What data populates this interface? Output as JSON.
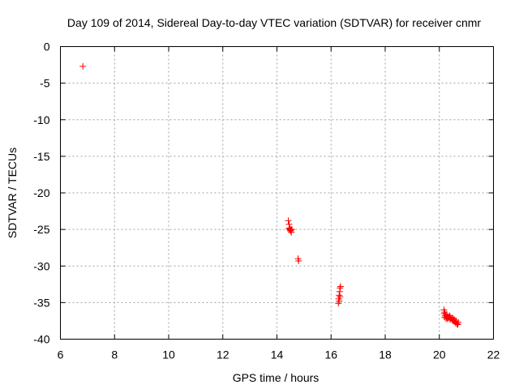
{
  "chart_data": {
    "type": "scatter",
    "title": "Day 109 of 2014, Sidereal Day-to-day VTEC variation (SDTVAR) for receiver cnmr",
    "xlabel": "GPS time / hours",
    "ylabel": "SDTVAR / TECUs",
    "xlim": [
      6,
      22
    ],
    "ylim": [
      -40,
      0
    ],
    "xticks": [
      6,
      8,
      10,
      12,
      14,
      16,
      18,
      20,
      22
    ],
    "yticks": [
      0,
      -5,
      -10,
      -15,
      -20,
      -25,
      -30,
      -35,
      -40
    ],
    "grid": true,
    "marker": "+",
    "color": "#ff0000",
    "series": [
      {
        "x": [
          6.83,
          14.42,
          14.45,
          14.47,
          14.48,
          14.5,
          14.52,
          14.53,
          14.55,
          14.45,
          14.5,
          14.78,
          14.8,
          16.27,
          16.28,
          16.3,
          16.32,
          16.33,
          16.35,
          16.3,
          16.33,
          20.17,
          20.18,
          20.2,
          20.22,
          20.25,
          20.28,
          20.3,
          20.33,
          20.35,
          20.38,
          20.4,
          20.42,
          20.45,
          20.48,
          20.5,
          20.52,
          20.55,
          20.57,
          20.6,
          20.62,
          20.65,
          20.68,
          20.7,
          20.2,
          20.25,
          20.3
        ],
        "y": [
          -2.7,
          -23.8,
          -24.3,
          -24.8,
          -25.0,
          -25.2,
          -25.0,
          -25.4,
          -25.0,
          -24.9,
          -25.1,
          -29.0,
          -29.3,
          -35.1,
          -34.5,
          -34.0,
          -33.5,
          -33.0,
          -32.8,
          -34.8,
          -34.2,
          -36.0,
          -36.5,
          -37.0,
          -36.8,
          -37.2,
          -37.0,
          -36.9,
          -37.1,
          -37.0,
          -36.8,
          -37.3,
          -37.0,
          -37.2,
          -37.4,
          -37.1,
          -37.5,
          -37.3,
          -37.6,
          -37.8,
          -37.5,
          -37.9,
          -38.0,
          -37.7,
          -36.3,
          -36.6,
          -37.2
        ]
      }
    ]
  }
}
